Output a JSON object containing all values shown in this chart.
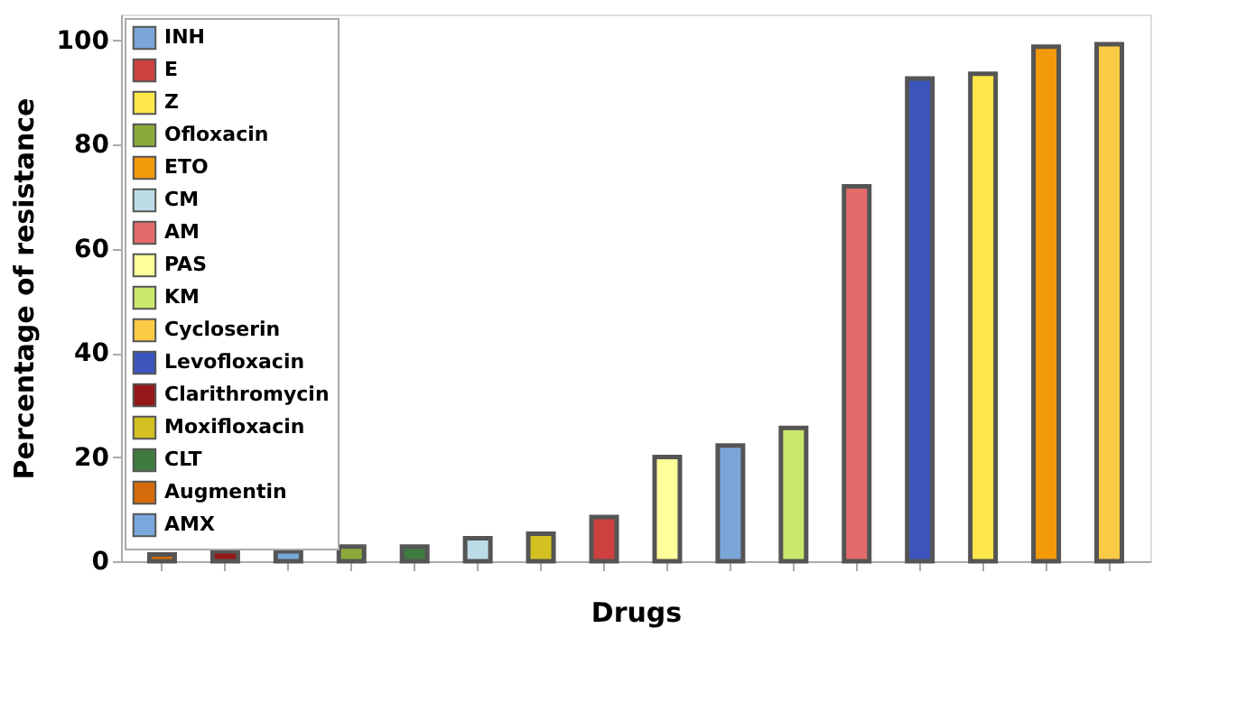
{
  "chart_data": {
    "type": "bar",
    "xlabel": "Drugs",
    "ylabel": "Percentage of resistance",
    "categories": [
      null,
      null,
      null,
      null,
      null,
      null,
      null,
      null,
      null,
      null,
      null,
      null,
      null,
      null,
      null,
      null
    ],
    "ylim": [
      0,
      105
    ],
    "yticks": [
      0,
      20,
      40,
      60,
      80,
      100
    ],
    "grid": false,
    "legend": "top left",
    "series": [
      {
        "name": "INH",
        "color": "#7aa6d8",
        "values": [
          null,
          null,
          null,
          null,
          null,
          null,
          null,
          null,
          null,
          22.2,
          null,
          null,
          null,
          null,
          null,
          null
        ]
      },
      {
        "name": "E",
        "color": "#cc4040",
        "values": [
          null,
          null,
          null,
          null,
          null,
          null,
          null,
          8.5,
          null,
          null,
          null,
          null,
          null,
          null,
          null,
          null
        ]
      },
      {
        "name": "Z",
        "color": "#ffe84a",
        "values": [
          null,
          null,
          null,
          null,
          null,
          null,
          null,
          null,
          null,
          null,
          null,
          null,
          null,
          93.6,
          null,
          null
        ]
      },
      {
        "name": "Ofloxacin",
        "color": "#8aab3a",
        "values": [
          null,
          null,
          null,
          2.8,
          null,
          null,
          null,
          null,
          null,
          null,
          null,
          null,
          null,
          null,
          null,
          null
        ]
      },
      {
        "name": "ETO",
        "color": "#f39a0a",
        "values": [
          null,
          null,
          null,
          null,
          null,
          null,
          null,
          null,
          null,
          null,
          null,
          null,
          null,
          null,
          98.8,
          null
        ]
      },
      {
        "name": "CM",
        "color": "#bcdce8",
        "values": [
          null,
          null,
          null,
          null,
          null,
          4.4,
          null,
          null,
          null,
          null,
          null,
          null,
          null,
          null,
          null,
          null
        ]
      },
      {
        "name": "AM",
        "color": "#e56a6a",
        "values": [
          null,
          null,
          null,
          null,
          null,
          null,
          null,
          null,
          null,
          null,
          null,
          72,
          null,
          null,
          null,
          null
        ]
      },
      {
        "name": "PAS",
        "color": "#ffff99",
        "values": [
          null,
          null,
          null,
          null,
          null,
          null,
          null,
          null,
          20,
          null,
          null,
          null,
          null,
          null,
          null,
          null
        ]
      },
      {
        "name": "KM",
        "color": "#cbe86a",
        "values": [
          null,
          null,
          null,
          null,
          null,
          null,
          null,
          null,
          null,
          null,
          25.6,
          null,
          null,
          null,
          null,
          null
        ]
      },
      {
        "name": "Cycloserin",
        "color": "#fccb45",
        "values": [
          null,
          null,
          null,
          null,
          null,
          null,
          null,
          null,
          null,
          null,
          null,
          null,
          null,
          null,
          null,
          99.3
        ]
      },
      {
        "name": "Levofloxacin",
        "color": "#3b55bd",
        "values": [
          null,
          null,
          null,
          null,
          null,
          null,
          null,
          null,
          null,
          null,
          null,
          null,
          92.7,
          null,
          null,
          null
        ]
      },
      {
        "name": "Clarithromycin",
        "color": "#951818",
        "values": [
          null,
          1.9,
          null,
          null,
          null,
          null,
          null,
          null,
          null,
          null,
          null,
          null,
          null,
          null,
          null,
          null
        ]
      },
      {
        "name": "Moxifloxacin",
        "color": "#d4c020",
        "values": [
          null,
          null,
          null,
          null,
          null,
          null,
          5.3,
          null,
          null,
          null,
          null,
          null,
          null,
          null,
          null,
          null
        ]
      },
      {
        "name": "CLT",
        "color": "#3f7a3f",
        "values": [
          null,
          null,
          null,
          null,
          2.8,
          null,
          null,
          null,
          null,
          null,
          null,
          null,
          null,
          null,
          null,
          null
        ]
      },
      {
        "name": "Augmentin",
        "color": "#d46a0a",
        "values": [
          1.3,
          null,
          null,
          null,
          null,
          null,
          null,
          null,
          null,
          null,
          null,
          null,
          null,
          null,
          null,
          null
        ]
      },
      {
        "name": "AMX",
        "color": "#78a8dc",
        "values": [
          null,
          null,
          1.9,
          null,
          null,
          null,
          null,
          null,
          null,
          null,
          null,
          null,
          null,
          null,
          null,
          null
        ]
      }
    ]
  }
}
